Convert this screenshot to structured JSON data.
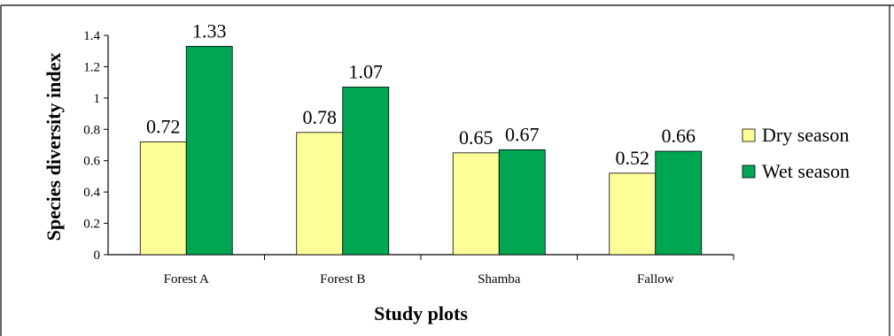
{
  "chart_data": {
    "type": "bar",
    "categories": [
      "Forest A",
      "Forest B",
      "Shamba",
      "Fallow"
    ],
    "series": [
      {
        "name": "Dry season",
        "values": [
          0.72,
          0.78,
          0.65,
          0.52
        ],
        "labels": [
          "0.72",
          "0.78",
          "0.65",
          "0.52"
        ],
        "color": "#ffff99"
      },
      {
        "name": "Wet season",
        "values": [
          1.33,
          1.07,
          0.67,
          0.66
        ],
        "labels": [
          "1.33",
          "1.07",
          "0.67",
          "0.66"
        ],
        "color": "#00a651"
      }
    ],
    "xlabel": "Study plots",
    "ylabel": "Species diversity index",
    "ylim": [
      0,
      1.4
    ],
    "yticks": [
      "0",
      "0.2",
      "0.4",
      "0.6",
      "0.8",
      "1",
      "1.2",
      "1.4"
    ],
    "grid": false,
    "legend": "right"
  }
}
